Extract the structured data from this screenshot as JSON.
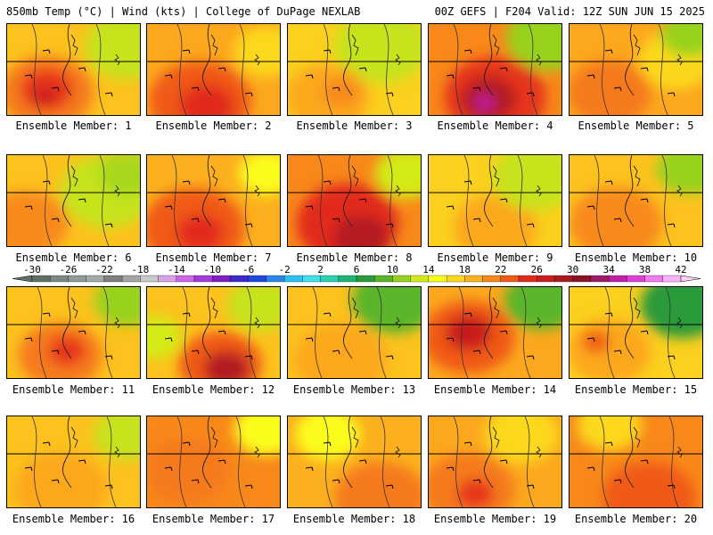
{
  "header": {
    "left": "850mb Temp (°C) | Wind (kts) | College of DuPage NEXLAB",
    "right": "00Z GEFS | F204 Valid: 12Z SUN JUN 15 2025"
  },
  "member_label_prefix": "Ensemble Member: ",
  "colorbar": {
    "tick_labels": [
      "-30",
      "-26",
      "-22",
      "-18",
      "-14",
      "-10",
      "-6",
      "-2",
      "2",
      "6",
      "10",
      "14",
      "18",
      "22",
      "26",
      "30",
      "34",
      "38",
      "42"
    ],
    "bins": [
      {
        "from": -30,
        "to": -28,
        "color": "#5e7064"
      },
      {
        "from": -28,
        "to": -26,
        "color": "#7a8a80"
      },
      {
        "from": -26,
        "to": -24,
        "color": "#8f9a94"
      },
      {
        "from": -24,
        "to": -22,
        "color": "#a2aaa6"
      },
      {
        "from": -22,
        "to": -20,
        "color": "#7f7f7f"
      },
      {
        "from": -20,
        "to": -18,
        "color": "#a5a5a5"
      },
      {
        "from": -18,
        "to": -16,
        "color": "#c8c8c8"
      },
      {
        "from": -16,
        "to": -14,
        "color": "#d9a3e8"
      },
      {
        "from": -14,
        "to": -12,
        "color": "#cc66e6"
      },
      {
        "from": -12,
        "to": -10,
        "color": "#a63bd9"
      },
      {
        "from": -10,
        "to": -8,
        "color": "#7d1fc4"
      },
      {
        "from": -8,
        "to": -6,
        "color": "#3b2acc"
      },
      {
        "from": -6,
        "to": -4,
        "color": "#1f48e0"
      },
      {
        "from": -4,
        "to": -2,
        "color": "#2a86e8"
      },
      {
        "from": -2,
        "to": 0,
        "color": "#2bc1ef"
      },
      {
        "from": 0,
        "to": 2,
        "color": "#40e0e8"
      },
      {
        "from": 2,
        "to": 4,
        "color": "#2bd0b0"
      },
      {
        "from": 4,
        "to": 6,
        "color": "#1fb574"
      },
      {
        "from": 6,
        "to": 8,
        "color": "#2a9a3a"
      },
      {
        "from": 8,
        "to": 10,
        "color": "#5ab52a"
      },
      {
        "from": 10,
        "to": 12,
        "color": "#98d21e"
      },
      {
        "from": 12,
        "to": 14,
        "color": "#d4ea18"
      },
      {
        "from": 14,
        "to": 16,
        "color": "#fbfc1c"
      },
      {
        "from": 16,
        "to": 18,
        "color": "#fcd81e"
      },
      {
        "from": 18,
        "to": 20,
        "color": "#fbb21e"
      },
      {
        "from": 20,
        "to": 22,
        "color": "#f8881a"
      },
      {
        "from": 22,
        "to": 24,
        "color": "#f05a18"
      },
      {
        "from": 24,
        "to": 26,
        "color": "#e22a1a"
      },
      {
        "from": 26,
        "to": 28,
        "color": "#c81e1e"
      },
      {
        "from": 28,
        "to": 30,
        "color": "#a81a22"
      },
      {
        "from": 30,
        "to": 32,
        "color": "#8a1226"
      },
      {
        "from": 32,
        "to": 34,
        "color": "#a01a66"
      },
      {
        "from": 34,
        "to": 36,
        "color": "#c21ea8"
      },
      {
        "from": 36,
        "to": 38,
        "color": "#e040d8"
      },
      {
        "from": 38,
        "to": 40,
        "color": "#f27af0"
      },
      {
        "from": 40,
        "to": 42,
        "color": "#f8b4f6"
      }
    ]
  },
  "chart_data": {
    "type": "heatmap",
    "title": "850mb Temp (°C) | Wind (kts)",
    "members": [
      {
        "member": 1,
        "base": "#fcc21e",
        "blobs": [
          {
            "x": 0.3,
            "y": 0.75,
            "r": 0.5,
            "c": "#f57a1a"
          },
          {
            "x": 0.3,
            "y": 0.72,
            "r": 0.28,
            "c": "#e6361a"
          },
          {
            "x": 0.28,
            "y": 0.8,
            "r": 0.12,
            "c": "#c81e1e"
          },
          {
            "x": 0.9,
            "y": 0.25,
            "r": 0.45,
            "c": "#c6e31a"
          }
        ]
      },
      {
        "member": 2,
        "base": "#fca81e",
        "blobs": [
          {
            "x": 0.4,
            "y": 0.85,
            "r": 0.55,
            "c": "#f05a18"
          },
          {
            "x": 0.45,
            "y": 0.9,
            "r": 0.3,
            "c": "#e22a1a"
          },
          {
            "x": 0.9,
            "y": 0.3,
            "r": 0.35,
            "c": "#fcd81e"
          }
        ]
      },
      {
        "member": 3,
        "base": "#fbd01e",
        "blobs": [
          {
            "x": 0.7,
            "y": 0.25,
            "r": 0.5,
            "c": "#c6e31a"
          },
          {
            "x": 0.3,
            "y": 0.8,
            "r": 0.45,
            "c": "#fca81e"
          },
          {
            "x": 0.4,
            "y": 0.75,
            "r": 0.2,
            "c": "#f88a1a"
          }
        ]
      },
      {
        "member": 4,
        "base": "#f8881a",
        "blobs": [
          {
            "x": 0.5,
            "y": 0.8,
            "r": 0.55,
            "c": "#e6361a"
          },
          {
            "x": 0.45,
            "y": 0.82,
            "r": 0.3,
            "c": "#b41a24"
          },
          {
            "x": 0.42,
            "y": 0.86,
            "r": 0.1,
            "c": "#c21ea8"
          },
          {
            "x": 0.9,
            "y": 0.15,
            "r": 0.45,
            "c": "#98d21e"
          }
        ]
      },
      {
        "member": 5,
        "base": "#fca81e",
        "blobs": [
          {
            "x": 0.3,
            "y": 0.75,
            "r": 0.45,
            "c": "#f57a1a"
          },
          {
            "x": 0.8,
            "y": 0.4,
            "r": 0.4,
            "c": "#fcd81e"
          },
          {
            "x": 0.9,
            "y": 0.12,
            "r": 0.3,
            "c": "#98d21e"
          }
        ]
      },
      {
        "member": 6,
        "base": "#fcc21e",
        "blobs": [
          {
            "x": 0.15,
            "y": 0.75,
            "r": 0.45,
            "c": "#f88a1a"
          },
          {
            "x": 0.75,
            "y": 0.4,
            "r": 0.5,
            "c": "#c6e31a"
          },
          {
            "x": 0.9,
            "y": 0.2,
            "r": 0.3,
            "c": "#a8d81e"
          }
        ]
      },
      {
        "member": 7,
        "base": "#fcb01e",
        "blobs": [
          {
            "x": 0.35,
            "y": 0.8,
            "r": 0.55,
            "c": "#f05a18"
          },
          {
            "x": 0.4,
            "y": 0.85,
            "r": 0.25,
            "c": "#e22a1a"
          },
          {
            "x": 0.9,
            "y": 0.2,
            "r": 0.3,
            "c": "#fbfc1c"
          }
        ]
      },
      {
        "member": 8,
        "base": "#f8881a",
        "blobs": [
          {
            "x": 0.45,
            "y": 0.75,
            "r": 0.55,
            "c": "#e22a1a"
          },
          {
            "x": 0.55,
            "y": 0.9,
            "r": 0.3,
            "c": "#b41a24"
          },
          {
            "x": 0.9,
            "y": 0.2,
            "r": 0.35,
            "c": "#d4ea18"
          }
        ]
      },
      {
        "member": 9,
        "base": "#fbd01e",
        "blobs": [
          {
            "x": 0.5,
            "y": 0.8,
            "r": 0.45,
            "c": "#fca81e"
          },
          {
            "x": 0.8,
            "y": 0.25,
            "r": 0.45,
            "c": "#c6e31a"
          }
        ]
      },
      {
        "member": 10,
        "base": "#fcc21e",
        "blobs": [
          {
            "x": 0.35,
            "y": 0.75,
            "r": 0.5,
            "c": "#f88a1a"
          },
          {
            "x": 0.9,
            "y": 0.15,
            "r": 0.35,
            "c": "#98d21e"
          }
        ]
      },
      {
        "member": 11,
        "base": "#fcc21e",
        "blobs": [
          {
            "x": 0.4,
            "y": 0.75,
            "r": 0.45,
            "c": "#f57a1a"
          },
          {
            "x": 0.45,
            "y": 0.7,
            "r": 0.2,
            "c": "#e6361a"
          },
          {
            "x": 0.9,
            "y": 0.15,
            "r": 0.35,
            "c": "#98d21e"
          }
        ]
      },
      {
        "member": 12,
        "base": "#fcc21e",
        "blobs": [
          {
            "x": 0.55,
            "y": 0.85,
            "r": 0.45,
            "c": "#f05a18"
          },
          {
            "x": 0.6,
            "y": 0.9,
            "r": 0.25,
            "c": "#b41a24"
          },
          {
            "x": 0.05,
            "y": 0.55,
            "r": 0.3,
            "c": "#d4ea18"
          },
          {
            "x": 0.85,
            "y": 0.2,
            "r": 0.35,
            "c": "#c6e31a"
          }
        ]
      },
      {
        "member": 13,
        "base": "#fcc21e",
        "blobs": [
          {
            "x": 0.4,
            "y": 0.8,
            "r": 0.5,
            "c": "#fca81e"
          },
          {
            "x": 0.8,
            "y": 0.15,
            "r": 0.45,
            "c": "#5ab52a"
          }
        ]
      },
      {
        "member": 14,
        "base": "#fca81e",
        "blobs": [
          {
            "x": 0.3,
            "y": 0.55,
            "r": 0.5,
            "c": "#f05a18"
          },
          {
            "x": 0.3,
            "y": 0.5,
            "r": 0.25,
            "c": "#c81e1e"
          },
          {
            "x": 0.85,
            "y": 0.15,
            "r": 0.4,
            "c": "#5ab52a"
          }
        ]
      },
      {
        "member": 15,
        "base": "#fbd01e",
        "blobs": [
          {
            "x": 0.3,
            "y": 0.7,
            "r": 0.45,
            "c": "#fca81e"
          },
          {
            "x": 0.2,
            "y": 0.6,
            "r": 0.15,
            "c": "#f05a18"
          },
          {
            "x": 0.85,
            "y": 0.2,
            "r": 0.45,
            "c": "#2a9a3a"
          }
        ]
      },
      {
        "member": 16,
        "base": "#fcc21e",
        "blobs": [
          {
            "x": 0.4,
            "y": 0.8,
            "r": 0.5,
            "c": "#fca81e"
          },
          {
            "x": 0.9,
            "y": 0.2,
            "r": 0.35,
            "c": "#c6e31a"
          }
        ]
      },
      {
        "member": 17,
        "base": "#f8881a",
        "blobs": [
          {
            "x": 0.3,
            "y": 0.6,
            "r": 0.45,
            "c": "#f57a1a"
          },
          {
            "x": 0.9,
            "y": 0.15,
            "r": 0.35,
            "c": "#fbfc1c"
          }
        ]
      },
      {
        "member": 18,
        "base": "#fcb01e",
        "blobs": [
          {
            "x": 0.7,
            "y": 0.9,
            "r": 0.5,
            "c": "#f57a1a"
          },
          {
            "x": 0.3,
            "y": 0.2,
            "r": 0.35,
            "c": "#fbfc1c"
          }
        ]
      },
      {
        "member": 19,
        "base": "#fca81e",
        "blobs": [
          {
            "x": 0.3,
            "y": 0.8,
            "r": 0.5,
            "c": "#f57a1a"
          },
          {
            "x": 0.35,
            "y": 0.85,
            "r": 0.2,
            "c": "#e6361a"
          },
          {
            "x": 0.7,
            "y": 0.2,
            "r": 0.4,
            "c": "#fcd81e"
          }
        ]
      },
      {
        "member": 20,
        "base": "#f8881a",
        "blobs": [
          {
            "x": 0.6,
            "y": 0.9,
            "r": 0.5,
            "c": "#f05a18"
          },
          {
            "x": 0.3,
            "y": 0.1,
            "r": 0.35,
            "c": "#fcd81e"
          }
        ]
      }
    ]
  }
}
